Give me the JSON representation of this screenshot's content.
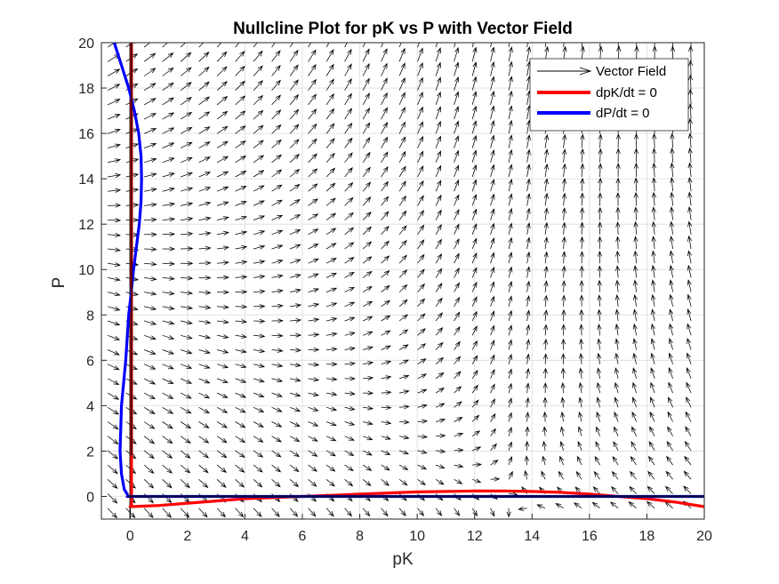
{
  "chart_data": {
    "type": "line",
    "title": "Nullcline Plot for pK vs P with Vector Field",
    "xlabel": "pK",
    "ylabel": "P",
    "xlim": [
      -1,
      20
    ],
    "ylim": [
      -1,
      20
    ],
    "xticks": [
      0,
      2,
      4,
      6,
      8,
      10,
      12,
      14,
      16,
      18,
      20
    ],
    "yticks": [
      0,
      2,
      4,
      6,
      8,
      10,
      12,
      14,
      16,
      18,
      20
    ],
    "grid": true,
    "legend_position": "top-right",
    "legend": [
      "Vector Field",
      "dpK/dt = 0",
      "dP/dt = 0"
    ],
    "colors": {
      "vector_field": "#000000",
      "dpk_nullcline": "#ff0000",
      "dp_nullcline": "#0000ff",
      "axes_lines": "#000000"
    },
    "series": [
      {
        "name": "dpK/dt = 0",
        "color": "#ff0000",
        "segments": [
          {
            "x": [
              0.05,
              0.05
            ],
            "y": [
              -0.4,
              20
            ]
          },
          {
            "x": [
              0.05,
              0,
              1,
              2,
              3,
              4,
              5,
              6,
              7,
              8,
              9,
              10,
              11,
              12,
              13,
              14,
              15,
              16,
              17,
              18,
              19,
              20
            ],
            "y": [
              -0.4,
              -0.45,
              -0.4,
              -0.3,
              -0.2,
              -0.1,
              -0.05,
              0.0,
              0.05,
              0.1,
              0.15,
              0.2,
              0.22,
              0.24,
              0.24,
              0.22,
              0.18,
              0.1,
              0.0,
              -0.1,
              -0.25,
              -0.45
            ]
          }
        ]
      },
      {
        "name": "dP/dt = 0",
        "color": "#0000ff",
        "segments": [
          {
            "x": [
              -0.55,
              -0.3,
              -0.05,
              0.15,
              0.3,
              0.38,
              0.4,
              0.38,
              0.32,
              0.22,
              0.12,
              0.04,
              -0.05,
              -0.15,
              -0.3,
              -0.35,
              -0.3,
              -0.2,
              -0.1
            ],
            "y": [
              20,
              19,
              18,
              17,
              16,
              15,
              14,
              13,
              12,
              11,
              10,
              9,
              8,
              6,
              4,
              2,
              1,
              0.3,
              0.1
            ]
          },
          {
            "x": [
              -0.1,
              20
            ],
            "y": [
              0.0,
              0.0
            ]
          }
        ]
      }
    ],
    "vector_field": {
      "x_start": -0.78,
      "x_step": 0.635,
      "x_count": 33,
      "y_start": -0.52,
      "y_step": 0.635,
      "y_count": 33,
      "model": "u = 0.6 - 0.045*x + 0.012*y; v = -0.6 + 0.045*x + 0.05*y"
    }
  }
}
